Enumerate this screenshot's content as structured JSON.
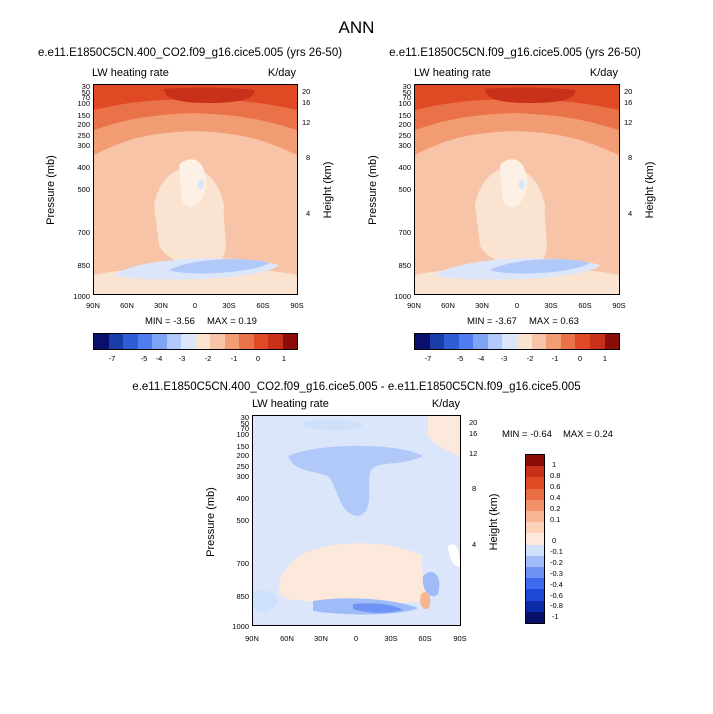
{
  "main_title": "ANN",
  "colors": {
    "abs_scale": [
      "#08106b",
      "#1a3ca8",
      "#2f5dd6",
      "#4f7df0",
      "#7fa3f5",
      "#b0c9f8",
      "#dbe6fb",
      "#fbe3d2",
      "#f8c4a8",
      "#f29c74",
      "#ea7248",
      "#df4a25",
      "#c9301a",
      "#8b0d0a"
    ],
    "diff_scale": [
      "#08106b",
      "#0b2aa8",
      "#1e49d8",
      "#3f69ee",
      "#6f93f4",
      "#a0bcf8",
      "#cfe0fb",
      "#fde9dc",
      "#fbd2b9",
      "#f8b593",
      "#f2926a",
      "#ea6d44",
      "#df4a22",
      "#c9301a",
      "#8b0d0a"
    ]
  },
  "panels": [
    {
      "title": "e.e11.E1850C5CN.400_CO2.f09_g16.cice5.005 (yrs 26-50)",
      "left_label": "LW heating rate",
      "right_label": "K/day",
      "min_text": "MIN =  -3.56",
      "max_text": "MAX =  0.19"
    },
    {
      "title": "e.e11.E1850C5CN.f09_g16.cice5.005 (yrs 26-50)",
      "left_label": "LW heating rate",
      "right_label": "K/day",
      "min_text": "MIN =  -3.67",
      "max_text": "MAX =  0.63"
    },
    {
      "title": "e.e11.E1850C5CN.400_CO2.f09_g16.cice5.005 - e.e11.E1850C5CN.f09_g16.cice5.005",
      "left_label": "LW heating rate",
      "right_label": "K/day",
      "min_text": "MIN =  -0.64",
      "max_text": "MAX =  0.24"
    }
  ],
  "axes": {
    "y_title": "Pressure (mb)",
    "y2_title": "Height (km)"
  },
  "chart_data": [
    {
      "type": "heatmap",
      "title": "e.e11.E1850C5CN.400_CO2.f09_g16.cice5.005 (yrs 26-50)",
      "xlabel": "",
      "ylabel": "Pressure (mb)",
      "y2label": "Height (km)",
      "x_ticks": [
        "90N",
        "60N",
        "30N",
        "0",
        "30S",
        "60S",
        "90S"
      ],
      "y_ticks": [
        "30",
        "50",
        "70",
        "100",
        "150",
        "200",
        "250",
        "300",
        "400",
        "500",
        "700",
        "850",
        "1000"
      ],
      "y2_ticks": [
        "20",
        "16",
        "12",
        "8",
        "4"
      ],
      "ylim": [
        30,
        1000
      ],
      "variable": "LW heating rate",
      "units": "K/day",
      "min": -3.56,
      "max": 0.19,
      "colorbar_labels": [
        "-7",
        "-5",
        "-4",
        "-3",
        "-2",
        "-1",
        "0",
        "1"
      ]
    },
    {
      "type": "heatmap",
      "title": "e.e11.E1850C5CN.f09_g16.cice5.005 (yrs 26-50)",
      "xlabel": "",
      "ylabel": "Pressure (mb)",
      "y2label": "Height (km)",
      "x_ticks": [
        "90N",
        "60N",
        "30N",
        "0",
        "30S",
        "60S",
        "90S"
      ],
      "y_ticks": [
        "30",
        "50",
        "70",
        "100",
        "150",
        "200",
        "250",
        "300",
        "400",
        "500",
        "700",
        "850",
        "1000"
      ],
      "y2_ticks": [
        "20",
        "16",
        "12",
        "8",
        "4"
      ],
      "ylim": [
        30,
        1000
      ],
      "variable": "LW heating rate",
      "units": "K/day",
      "min": -3.67,
      "max": 0.63,
      "colorbar_labels": [
        "-7",
        "-5",
        "-4",
        "-3",
        "-2",
        "-1",
        "0",
        "1"
      ]
    },
    {
      "type": "heatmap",
      "title": "e.e11.E1850C5CN.400_CO2.f09_g16.cice5.005 - e.e11.E1850C5CN.f09_g16.cice5.005",
      "xlabel": "",
      "ylabel": "Pressure (mb)",
      "y2label": "Height (km)",
      "x_ticks": [
        "90N",
        "60N",
        "30N",
        "0",
        "30S",
        "60S",
        "90S"
      ],
      "y_ticks": [
        "30",
        "50",
        "70",
        "100",
        "150",
        "200",
        "250",
        "300",
        "400",
        "500",
        "700",
        "850",
        "1000"
      ],
      "y2_ticks": [
        "20",
        "16",
        "12",
        "8",
        "4"
      ],
      "ylim": [
        30,
        1000
      ],
      "variable": "LW heating rate",
      "units": "K/day",
      "min": -0.64,
      "max": 0.24,
      "colorbar_labels": [
        "1",
        "0.8",
        "0.6",
        "0.4",
        "0.2",
        "0.1",
        "0",
        "-0.1",
        "-0.2",
        "-0.3",
        "-0.4",
        "-0.6",
        "-0.8",
        "-1"
      ]
    }
  ]
}
